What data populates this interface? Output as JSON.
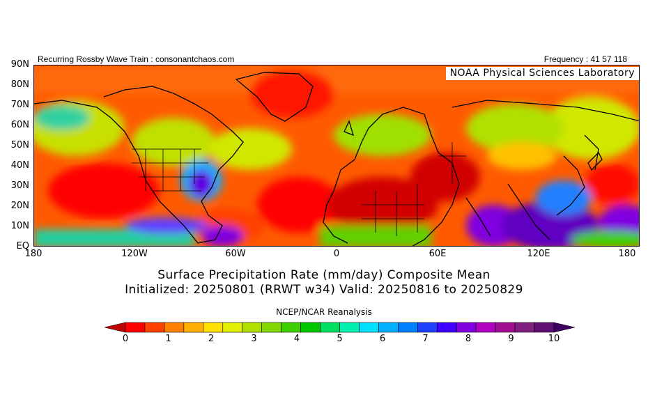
{
  "header": {
    "left_text": "Recurring Rossby Wave Train : consonantchaos.com",
    "right_text": "Frequency : 41 57 118"
  },
  "map": {
    "watermark": "NOAA Physical Sciences Laboratory",
    "lat_labels": [
      "90N",
      "80N",
      "70N",
      "60N",
      "50N",
      "40N",
      "30N",
      "20N",
      "10N",
      "EQ"
    ],
    "lon_labels": [
      "180",
      "120W",
      "60W",
      "0",
      "60E",
      "120E",
      "180"
    ],
    "lat_range": [
      0,
      90
    ],
    "lon_range": [
      -180,
      180
    ]
  },
  "title": {
    "line1": "Surface Precipitation Rate (mm/day) Composite Mean",
    "line2": "Initialized: 20250801 (RRWT w34) Valid: 20250816 to 20250829"
  },
  "source": "NCEP/NCAR Reanalysis",
  "colorbar": {
    "unit": "mm/day",
    "tick_labels": [
      "0",
      "1",
      "2",
      "3",
      "4",
      "5",
      "6",
      "7",
      "8",
      "9",
      "10"
    ],
    "colors": [
      "#c00000",
      "#ff0000",
      "#ff4000",
      "#ff8000",
      "#ffb000",
      "#ffe000",
      "#e0f000",
      "#b0e000",
      "#80d800",
      "#40d000",
      "#00c800",
      "#00e060",
      "#00f0b0",
      "#00e0ff",
      "#00b0ff",
      "#0080ff",
      "#2040ff",
      "#4000ff",
      "#8000e0",
      "#b000c0",
      "#a01090",
      "#802080",
      "#601070",
      "#400060"
    ]
  }
}
